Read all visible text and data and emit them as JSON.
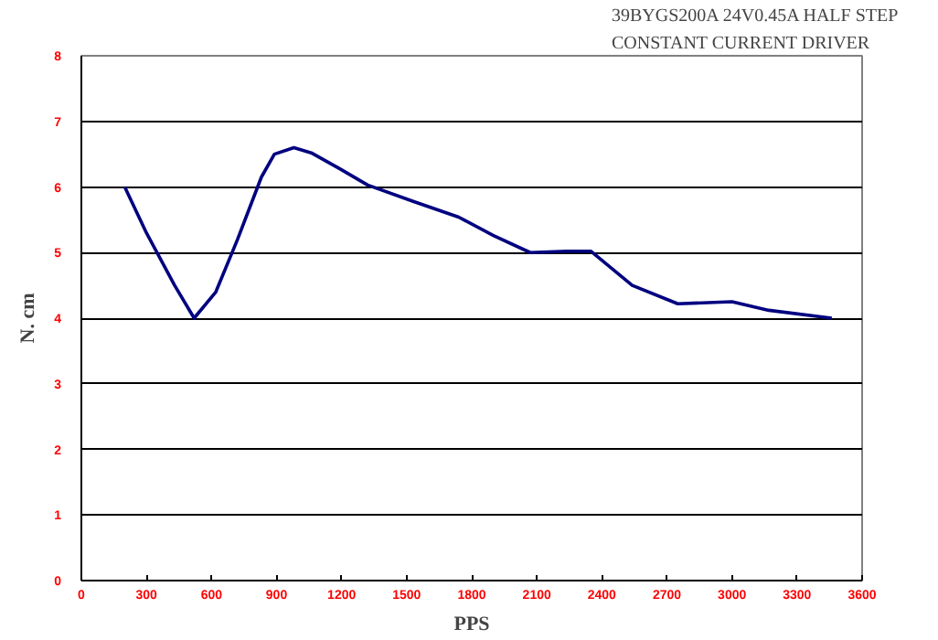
{
  "chart_data": {
    "type": "line",
    "title": "39BYGS200A 24V0.45A HALF  STEP",
    "subtitle": "CONSTANT  CURRENT  DRIVER",
    "xlabel": "PPS",
    "ylabel": "N. cm",
    "x": [
      200,
      300,
      430,
      520,
      620,
      720,
      830,
      890,
      980,
      1060,
      1190,
      1320,
      1530,
      1740,
      1900,
      2070,
      2240,
      2350,
      2540,
      2750,
      3000,
      3170,
      3460
    ],
    "series": [
      {
        "color": "#000080",
        "values": [
          6.0,
          5.3,
          4.5,
          4.0,
          4.4,
          5.2,
          6.15,
          6.5,
          6.6,
          6.52,
          6.28,
          6.03,
          5.78,
          5.54,
          5.26,
          5.0,
          5.02,
          5.02,
          4.5,
          4.22,
          4.25,
          4.12,
          4.0
        ]
      }
    ],
    "xlim": [
      0,
      3600
    ],
    "xticks": [
      0,
      300,
      600,
      900,
      1200,
      1500,
      1800,
      2100,
      2400,
      2700,
      3000,
      3300,
      3600
    ],
    "ylim": [
      0,
      8
    ],
    "yticks": [
      0,
      1,
      2,
      3,
      4,
      5,
      6,
      7,
      8
    ],
    "grid": "y",
    "marker": "none",
    "line_style": "solid"
  }
}
